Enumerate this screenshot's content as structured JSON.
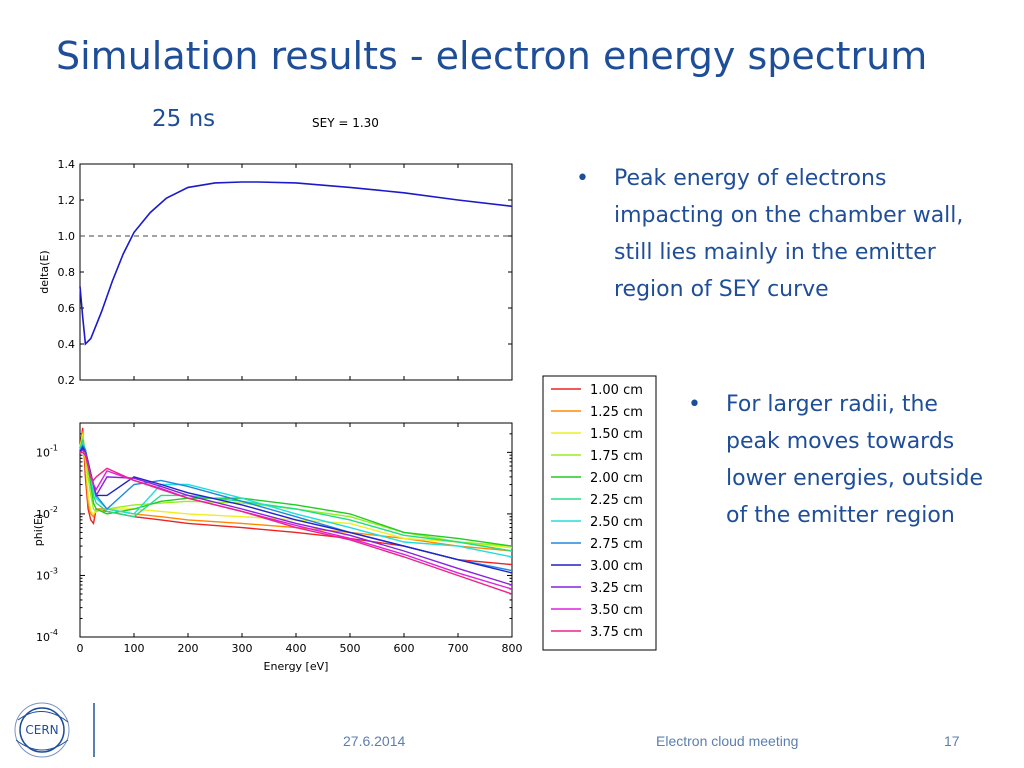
{
  "slide": {
    "title": "Simulation results - electron energy spectrum",
    "subtitle": "25 ns",
    "bullets_top": [
      "Peak energy of electrons impacting on the chamber wall, still lies mainly in the emitter region of SEY curve"
    ],
    "bullets_right": [
      "For larger radii, the peak moves towards lower energies, outside of the emitter region"
    ],
    "footer": {
      "date": "27.6.2014",
      "meeting": "Electron cloud meeting",
      "page": "17"
    },
    "logo_text": "CERN"
  },
  "chart_data": [
    {
      "type": "line",
      "title": "SEY = 1.30",
      "xlabel": "",
      "ylabel": "delta(E)",
      "xlim": [
        0,
        800
      ],
      "ylim": [
        0.2,
        1.4
      ],
      "yticks": [
        "0.2",
        "0.4",
        "0.6",
        "0.8",
        "1.0",
        "1.2",
        "1.4"
      ],
      "reference_line": {
        "y": 1.0,
        "style": "dashed",
        "color": "#444444"
      },
      "series": [
        {
          "color": "#1a1acc",
          "x": [
            0,
            5,
            10,
            20,
            40,
            60,
            80,
            100,
            130,
            160,
            200,
            250,
            300,
            330,
            400,
            500,
            600,
            700,
            800
          ],
          "y": [
            0.72,
            0.55,
            0.4,
            0.43,
            0.58,
            0.75,
            0.9,
            1.02,
            1.13,
            1.21,
            1.27,
            1.295,
            1.3,
            1.3,
            1.295,
            1.27,
            1.24,
            1.2,
            1.165
          ]
        }
      ]
    },
    {
      "type": "line",
      "xlabel": "Energy [eV]",
      "ylabel": "phi(E)",
      "yscale": "log",
      "xlim": [
        0,
        800
      ],
      "ylim": [
        0.0001,
        0.3
      ],
      "xticks": [
        "0",
        "100",
        "200",
        "300",
        "400",
        "500",
        "600",
        "700",
        "800"
      ],
      "ytick_values": [
        0.0001,
        0.001,
        0.01,
        0.1
      ],
      "ytick_exponents": [
        "-4",
        "-3",
        "-2",
        "-1"
      ],
      "ytick_base": "10",
      "legend_position": "outside-right",
      "series": [
        {
          "name": "1.00 cm",
          "color": "#ee2222",
          "x": [
            0,
            5,
            10,
            15,
            20,
            25,
            30,
            50,
            100,
            150,
            200,
            300,
            400,
            500,
            600,
            700,
            800
          ],
          "y": [
            0.12,
            0.25,
            0.04,
            0.012,
            0.008,
            0.007,
            0.012,
            0.011,
            0.009,
            0.008,
            0.007,
            0.006,
            0.005,
            0.004,
            0.003,
            0.0018,
            0.0015
          ]
        },
        {
          "name": "1.25 cm",
          "color": "#ff8800",
          "x": [
            0,
            5,
            10,
            15,
            20,
            25,
            30,
            50,
            100,
            150,
            200,
            300,
            400,
            500,
            600,
            700,
            800
          ],
          "y": [
            0.12,
            0.22,
            0.06,
            0.015,
            0.01,
            0.009,
            0.012,
            0.012,
            0.01,
            0.009,
            0.008,
            0.007,
            0.006,
            0.005,
            0.004,
            0.003,
            0.0025
          ]
        },
        {
          "name": "1.50 cm",
          "color": "#eeee22",
          "x": [
            0,
            5,
            10,
            15,
            20,
            25,
            30,
            50,
            100,
            150,
            200,
            300,
            400,
            500,
            600,
            700,
            800
          ],
          "y": [
            0.12,
            0.2,
            0.08,
            0.02,
            0.011,
            0.01,
            0.011,
            0.012,
            0.012,
            0.011,
            0.01,
            0.009,
            0.008,
            0.007,
            0.004,
            0.0035,
            0.0028
          ]
        },
        {
          "name": "1.75 cm",
          "color": "#99ee22",
          "x": [
            0,
            5,
            10,
            15,
            20,
            25,
            30,
            50,
            100,
            150,
            200,
            300,
            400,
            500,
            600,
            700,
            800
          ],
          "y": [
            0.12,
            0.18,
            0.1,
            0.04,
            0.02,
            0.012,
            0.011,
            0.012,
            0.014,
            0.015,
            0.016,
            0.015,
            0.012,
            0.009,
            0.005,
            0.0035,
            0.003
          ]
        },
        {
          "name": "2.00 cm",
          "color": "#22cc22",
          "x": [
            0,
            5,
            10,
            15,
            20,
            25,
            30,
            50,
            100,
            150,
            200,
            300,
            400,
            500,
            600,
            700,
            800
          ],
          "y": [
            0.11,
            0.16,
            0.1,
            0.06,
            0.03,
            0.015,
            0.012,
            0.01,
            0.012,
            0.016,
            0.018,
            0.018,
            0.014,
            0.01,
            0.005,
            0.004,
            0.003
          ]
        },
        {
          "name": "2.25 cm",
          "color": "#22dd88",
          "x": [
            0,
            5,
            10,
            15,
            20,
            25,
            30,
            50,
            100,
            150,
            200,
            300,
            400,
            500,
            600,
            700,
            800
          ],
          "y": [
            0.11,
            0.15,
            0.11,
            0.07,
            0.04,
            0.02,
            0.015,
            0.011,
            0.009,
            0.02,
            0.02,
            0.016,
            0.012,
            0.008,
            0.0045,
            0.0035,
            0.0025
          ]
        },
        {
          "name": "2.50 cm",
          "color": "#22dddd",
          "x": [
            0,
            5,
            10,
            15,
            20,
            25,
            30,
            50,
            100,
            150,
            200,
            300,
            400,
            500,
            600,
            700,
            800
          ],
          "y": [
            0.11,
            0.14,
            0.11,
            0.07,
            0.04,
            0.025,
            0.018,
            0.012,
            0.01,
            0.03,
            0.03,
            0.018,
            0.01,
            0.006,
            0.0035,
            0.003,
            0.002
          ]
        },
        {
          "name": "2.75 cm",
          "color": "#2288dd",
          "x": [
            0,
            5,
            10,
            15,
            20,
            25,
            30,
            50,
            100,
            150,
            200,
            300,
            400,
            500,
            600,
            700,
            800
          ],
          "y": [
            0.11,
            0.13,
            0.11,
            0.07,
            0.045,
            0.03,
            0.02,
            0.012,
            0.03,
            0.035,
            0.028,
            0.016,
            0.009,
            0.005,
            0.003,
            0.0018,
            0.0012
          ]
        },
        {
          "name": "3.00 cm",
          "color": "#2222cc",
          "x": [
            0,
            5,
            10,
            15,
            20,
            25,
            30,
            50,
            100,
            150,
            200,
            300,
            400,
            500,
            600,
            700,
            800
          ],
          "y": [
            0.1,
            0.12,
            0.1,
            0.07,
            0.045,
            0.03,
            0.02,
            0.02,
            0.04,
            0.03,
            0.022,
            0.014,
            0.008,
            0.005,
            0.003,
            0.0018,
            0.0011
          ]
        },
        {
          "name": "3.25 cm",
          "color": "#8822dd",
          "x": [
            0,
            5,
            10,
            15,
            20,
            25,
            30,
            50,
            100,
            150,
            200,
            300,
            400,
            500,
            600,
            700,
            800
          ],
          "y": [
            0.1,
            0.11,
            0.1,
            0.07,
            0.045,
            0.03,
            0.02,
            0.04,
            0.038,
            0.028,
            0.02,
            0.012,
            0.007,
            0.0045,
            0.0025,
            0.0013,
            0.0007
          ]
        },
        {
          "name": "3.50 cm",
          "color": "#dd22dd",
          "x": [
            0,
            5,
            10,
            15,
            20,
            25,
            30,
            50,
            100,
            150,
            200,
            300,
            400,
            500,
            600,
            700,
            800
          ],
          "y": [
            0.1,
            0.1,
            0.09,
            0.06,
            0.04,
            0.03,
            0.025,
            0.05,
            0.035,
            0.026,
            0.018,
            0.011,
            0.0065,
            0.004,
            0.0022,
            0.0011,
            0.0006
          ]
        },
        {
          "name": "3.75 cm",
          "color": "#ee2288",
          "x": [
            0,
            5,
            10,
            15,
            20,
            25,
            30,
            50,
            100,
            150,
            200,
            300,
            400,
            500,
            600,
            700,
            800
          ],
          "y": [
            0.1,
            0.1,
            0.09,
            0.06,
            0.04,
            0.035,
            0.04,
            0.055,
            0.035,
            0.025,
            0.018,
            0.011,
            0.006,
            0.0038,
            0.002,
            0.001,
            0.0005
          ]
        }
      ]
    }
  ]
}
